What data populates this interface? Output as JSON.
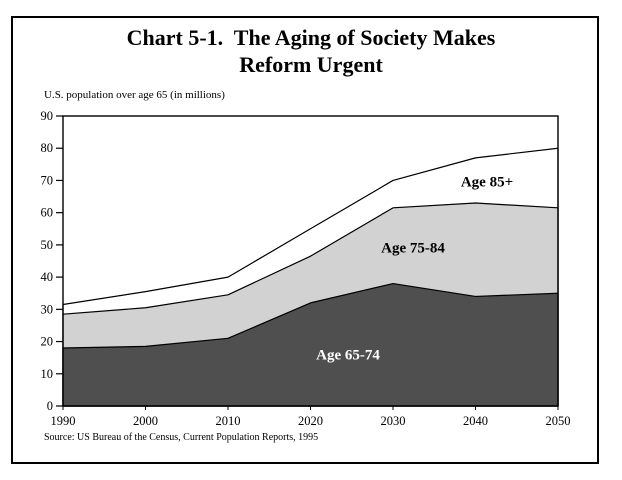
{
  "title": {
    "line1": "Chart 5-1.  The Aging of Society Makes",
    "line2": "Reform Urgent"
  },
  "chart": {
    "subtitle": "U.S. population over age 65 (in millions)",
    "source": "Source: US Bureau of the Census, Current Population Reports, 1995"
  },
  "chart_data": {
    "type": "area",
    "stacked": true,
    "title": "Chart 5-1. The Aging of Society Makes Reform Urgent",
    "ylabel": "U.S. population over age 65 (in millions)",
    "x": [
      1990,
      2000,
      2010,
      2020,
      2030,
      2040,
      2050
    ],
    "series": [
      {
        "name": "Age 65-74",
        "values": [
          18,
          18.5,
          21,
          32,
          38,
          34,
          35
        ],
        "color": "#4f4f4f"
      },
      {
        "name": "Age 75-84",
        "values": [
          10.5,
          12,
          13.5,
          14.5,
          23.5,
          29,
          26.5
        ],
        "color": "#d2d2d2"
      },
      {
        "name": "Age 85+",
        "values": [
          3,
          5,
          5.5,
          8.5,
          8.5,
          14,
          18.5
        ],
        "color": "#ffffff"
      }
    ],
    "cumulative_totals": [
      31.5,
      35.5,
      40,
      55,
      70,
      77,
      80
    ],
    "ylim": [
      0,
      90
    ],
    "ytick_step": 10,
    "grid": false,
    "legend": "inline-labels",
    "line_color": "#000000"
  }
}
